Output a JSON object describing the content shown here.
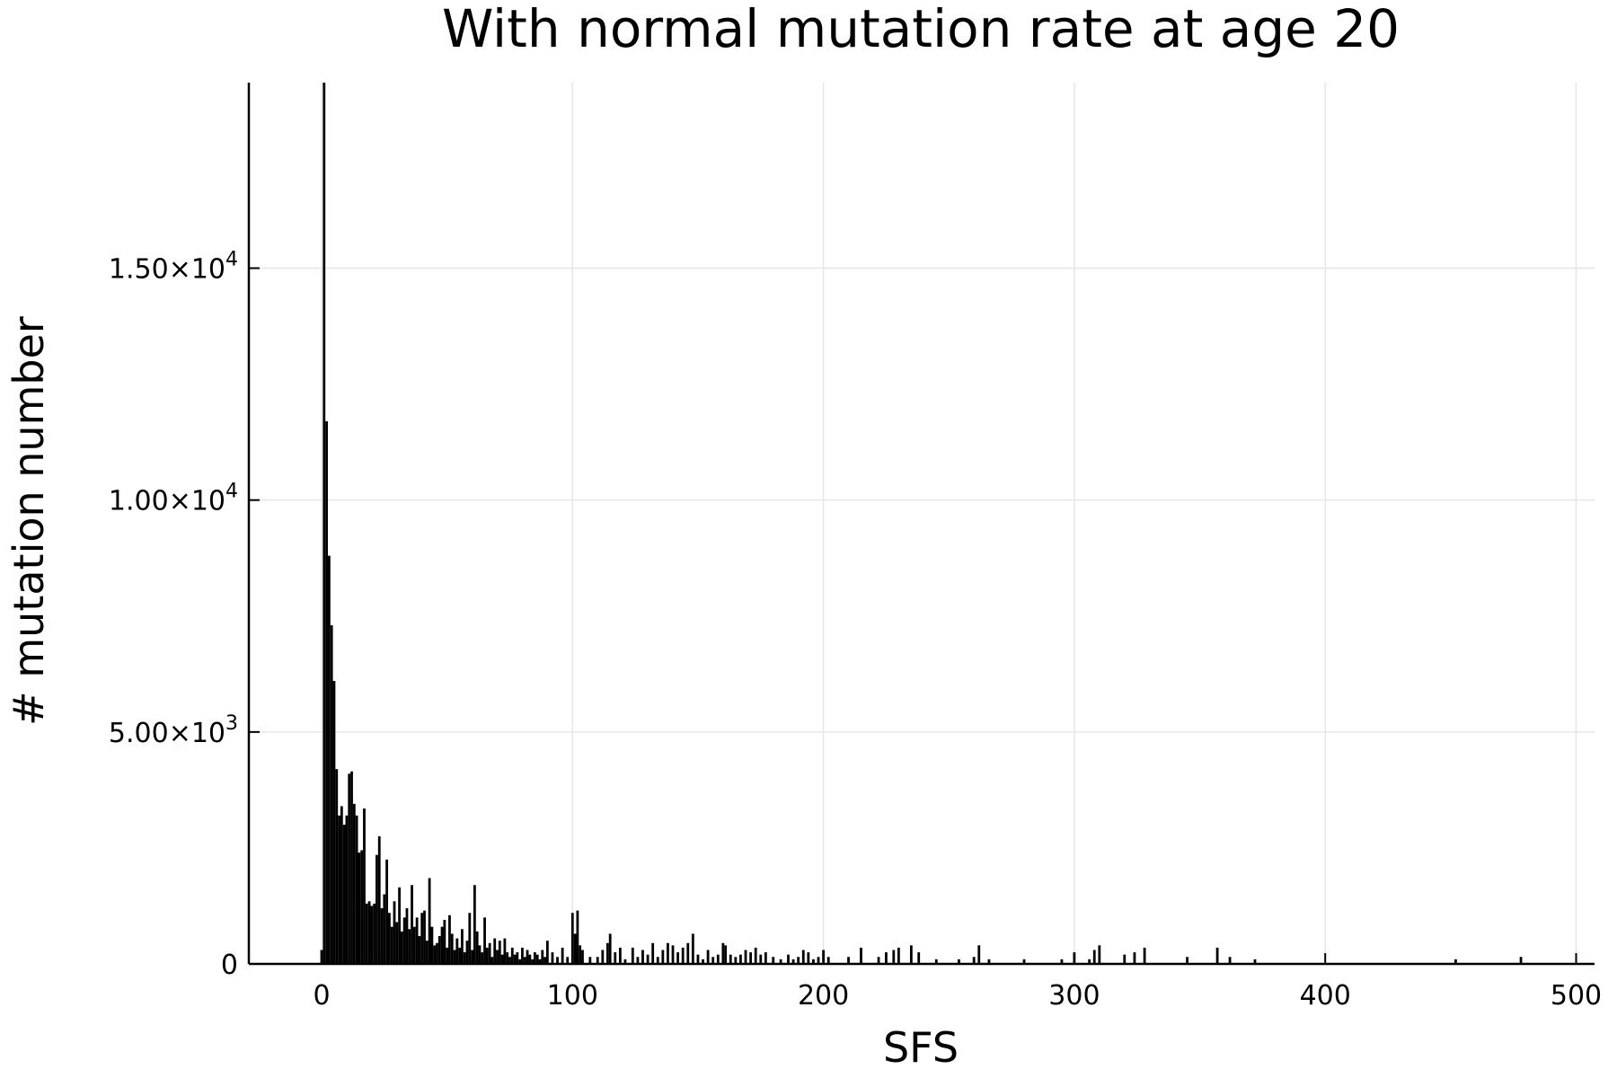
{
  "chart_data": {
    "type": "bar",
    "title": "With normal mutation rate at age 20",
    "xlabel": "SFS",
    "ylabel": "# mutation number",
    "xlim": [
      -30,
      505
    ],
    "ylim": [
      0,
      19000
    ],
    "grid": true,
    "legend": "none",
    "bar_color": "#000000",
    "x_ticks": [
      {
        "value": 0,
        "label": "0"
      },
      {
        "value": 100,
        "label": "100"
      },
      {
        "value": 200,
        "label": "200"
      },
      {
        "value": 300,
        "label": "300"
      },
      {
        "value": 400,
        "label": "400"
      },
      {
        "value": 500,
        "label": "500"
      }
    ],
    "y_ticks": [
      {
        "value": 0,
        "mantissa": "0",
        "exponent": ""
      },
      {
        "value": 5000,
        "mantissa": "5.00×10",
        "exponent": "3"
      },
      {
        "value": 10000,
        "mantissa": "1.00×10",
        "exponent": "4"
      },
      {
        "value": 15000,
        "mantissa": "1.50×10",
        "exponent": "4"
      }
    ],
    "bars": [
      [
        0,
        300
      ],
      [
        1,
        19000
      ],
      [
        2,
        11700
      ],
      [
        3,
        8800
      ],
      [
        4,
        7300
      ],
      [
        5,
        6100
      ],
      [
        6,
        4200
      ],
      [
        7,
        3200
      ],
      [
        8,
        3400
      ],
      [
        9,
        3000
      ],
      [
        10,
        3200
      ],
      [
        11,
        4100
      ],
      [
        12,
        4150
      ],
      [
        13,
        3450
      ],
      [
        14,
        3200
      ],
      [
        15,
        2400
      ],
      [
        16,
        2450
      ],
      [
        17,
        3350
      ],
      [
        18,
        1300
      ],
      [
        19,
        1350
      ],
      [
        20,
        1250
      ],
      [
        21,
        1300
      ],
      [
        22,
        2350
      ],
      [
        23,
        2750
      ],
      [
        24,
        1200
      ],
      [
        25,
        1500
      ],
      [
        26,
        2250
      ],
      [
        27,
        1100
      ],
      [
        28,
        800
      ],
      [
        29,
        1350
      ],
      [
        30,
        900
      ],
      [
        31,
        1650
      ],
      [
        32,
        700
      ],
      [
        33,
        1000
      ],
      [
        34,
        1200
      ],
      [
        35,
        750
      ],
      [
        36,
        1700
      ],
      [
        37,
        800
      ],
      [
        38,
        1000
      ],
      [
        39,
        600
      ],
      [
        40,
        1100
      ],
      [
        41,
        1150
      ],
      [
        42,
        500
      ],
      [
        43,
        1850
      ],
      [
        44,
        800
      ],
      [
        45,
        400
      ],
      [
        46,
        450
      ],
      [
        47,
        600
      ],
      [
        48,
        800
      ],
      [
        49,
        950
      ],
      [
        50,
        350
      ],
      [
        51,
        1050
      ],
      [
        52,
        650
      ],
      [
        53,
        300
      ],
      [
        54,
        550
      ],
      [
        55,
        350
      ],
      [
        56,
        750
      ],
      [
        57,
        250
      ],
      [
        58,
        500
      ],
      [
        59,
        1100
      ],
      [
        60,
        300
      ],
      [
        61,
        1700
      ],
      [
        62,
        700
      ],
      [
        63,
        400
      ],
      [
        64,
        250
      ],
      [
        65,
        1000
      ],
      [
        66,
        350
      ],
      [
        67,
        450
      ],
      [
        68,
        150
      ],
      [
        69,
        550
      ],
      [
        70,
        300
      ],
      [
        71,
        500
      ],
      [
        72,
        200
      ],
      [
        73,
        550
      ],
      [
        74,
        250
      ],
      [
        75,
        150
      ],
      [
        76,
        350
      ],
      [
        77,
        200
      ],
      [
        78,
        250
      ],
      [
        79,
        100
      ],
      [
        80,
        350
      ],
      [
        81,
        150
      ],
      [
        82,
        300
      ],
      [
        83,
        200
      ],
      [
        84,
        100
      ],
      [
        85,
        250
      ],
      [
        86,
        200
      ],
      [
        87,
        100
      ],
      [
        88,
        300
      ],
      [
        89,
        150
      ],
      [
        90,
        500
      ],
      [
        92,
        250
      ],
      [
        94,
        150
      ],
      [
        96,
        350
      ],
      [
        98,
        150
      ],
      [
        100,
        1100
      ],
      [
        101,
        650
      ],
      [
        102,
        1150
      ],
      [
        103,
        400
      ],
      [
        104,
        300
      ],
      [
        107,
        150
      ],
      [
        110,
        150
      ],
      [
        112,
        300
      ],
      [
        114,
        450
      ],
      [
        115,
        650
      ],
      [
        117,
        250
      ],
      [
        119,
        350
      ],
      [
        121,
        100
      ],
      [
        124,
        350
      ],
      [
        126,
        150
      ],
      [
        128,
        300
      ],
      [
        130,
        200
      ],
      [
        132,
        450
      ],
      [
        134,
        150
      ],
      [
        136,
        300
      ],
      [
        138,
        450
      ],
      [
        140,
        400
      ],
      [
        142,
        250
      ],
      [
        144,
        350
      ],
      [
        146,
        450
      ],
      [
        148,
        650
      ],
      [
        150,
        200
      ],
      [
        152,
        100
      ],
      [
        154,
        300
      ],
      [
        156,
        150
      ],
      [
        158,
        200
      ],
      [
        160,
        450
      ],
      [
        161,
        400
      ],
      [
        163,
        200
      ],
      [
        165,
        150
      ],
      [
        167,
        200
      ],
      [
        169,
        300
      ],
      [
        171,
        250
      ],
      [
        173,
        350
      ],
      [
        175,
        200
      ],
      [
        177,
        250
      ],
      [
        180,
        150
      ],
      [
        183,
        100
      ],
      [
        186,
        200
      ],
      [
        188,
        100
      ],
      [
        190,
        150
      ],
      [
        192,
        300
      ],
      [
        194,
        250
      ],
      [
        196,
        100
      ],
      [
        198,
        150
      ],
      [
        200,
        300
      ],
      [
        202,
        150
      ],
      [
        210,
        150
      ],
      [
        215,
        350
      ],
      [
        222,
        150
      ],
      [
        225,
        250
      ],
      [
        228,
        300
      ],
      [
        230,
        350
      ],
      [
        235,
        400
      ],
      [
        238,
        250
      ],
      [
        245,
        100
      ],
      [
        254,
        100
      ],
      [
        260,
        150
      ],
      [
        262,
        400
      ],
      [
        266,
        100
      ],
      [
        280,
        100
      ],
      [
        295,
        100
      ],
      [
        300,
        250
      ],
      [
        306,
        100
      ],
      [
        308,
        300
      ],
      [
        310,
        400
      ],
      [
        320,
        200
      ],
      [
        324,
        250
      ],
      [
        328,
        350
      ],
      [
        345,
        150
      ],
      [
        357,
        350
      ],
      [
        362,
        150
      ],
      [
        372,
        100
      ],
      [
        452,
        100
      ],
      [
        478,
        150
      ]
    ]
  }
}
